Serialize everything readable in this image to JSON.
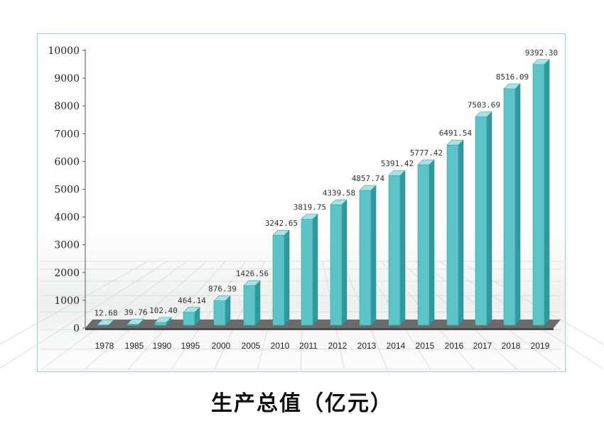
{
  "chart_data": {
    "type": "bar",
    "title": "生产总值（亿元）",
    "categories": [
      "1978",
      "1985",
      "1990",
      "1995",
      "2000",
      "2005",
      "2010",
      "2011",
      "2012",
      "2013",
      "2014",
      "2015",
      "2016",
      "2017",
      "2018",
      "2019"
    ],
    "values": [
      12.68,
      39.76,
      102.4,
      464.14,
      876.39,
      1426.56,
      3242.65,
      3819.75,
      4339.58,
      4857.74,
      5391.42,
      5777.42,
      6491.54,
      7503.69,
      8516.09,
      9392.3
    ],
    "value_labels": [
      "12.68",
      "39.76",
      "102.40",
      "464.14",
      "876.39",
      "1426.56",
      "3242.65",
      "3819.75",
      "4339.58",
      "4857.74",
      "5391.42",
      "5777.42",
      "6491.54",
      "7503.69",
      "8516.09",
      "9392.30"
    ],
    "yticks": [
      "0",
      "1000",
      "2000",
      "3000",
      "4000",
      "5000",
      "6000",
      "7000",
      "8000",
      "9000",
      "10000"
    ],
    "ylim": [
      0,
      10000
    ],
    "xlabel": "",
    "ylabel": "",
    "grid": false,
    "bar_color": "#5cc3c6"
  }
}
